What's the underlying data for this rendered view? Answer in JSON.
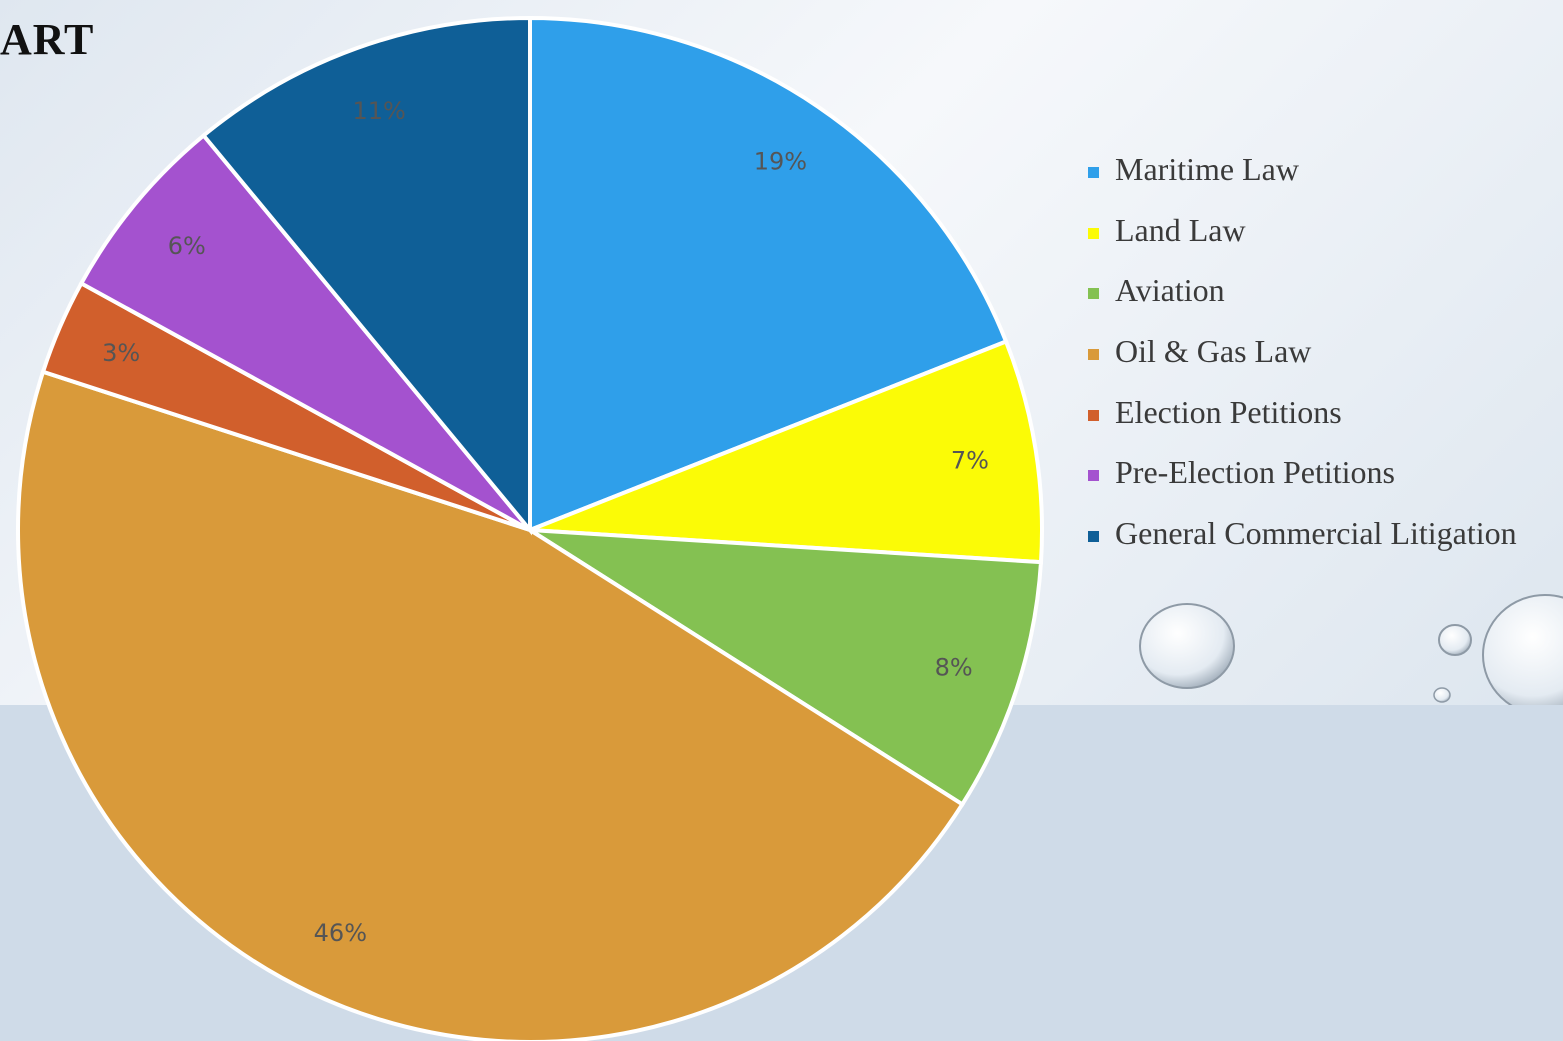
{
  "title": "ART",
  "chart_data": {
    "type": "pie",
    "slices": [
      {
        "label": "Maritime Law",
        "value": 19,
        "pct_label": "19%",
        "color": "#2f9fea"
      },
      {
        "label": "Land Law",
        "value": 7,
        "pct_label": "7%",
        "color": "#fbfb06"
      },
      {
        "label": "Aviation",
        "value": 8,
        "pct_label": "8%",
        "color": "#84c152"
      },
      {
        "label": "Oil & Gas Law",
        "value": 46,
        "pct_label": "46%",
        "color": "#d99a3a"
      },
      {
        "label": "Election Petitions",
        "value": 3,
        "pct_label": "3%",
        "color": "#d15f2c"
      },
      {
        "label": "Pre-Election Petitions",
        "value": 6,
        "pct_label": "6%",
        "color": "#a452cf"
      },
      {
        "label": "General Commercial Litigation",
        "value": 11,
        "pct_label": "11%",
        "color": "#0f5f97"
      }
    ],
    "legend_position": "right",
    "start_angle": "top, clockwise"
  }
}
